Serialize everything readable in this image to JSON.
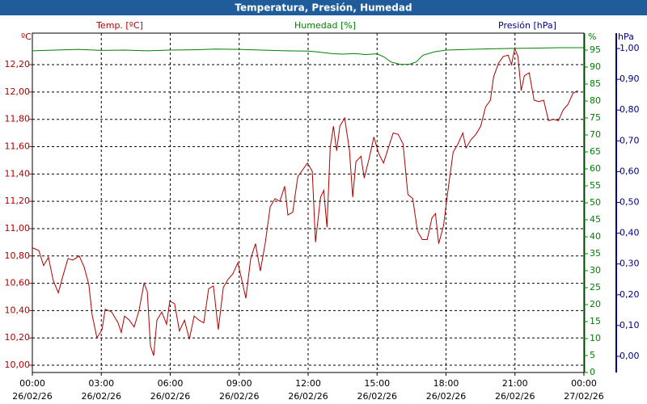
{
  "chart_data": {
    "type": "line",
    "title": "Temperatura, Presión, Humedad",
    "xlim": [
      0,
      24
    ],
    "xticks": [
      {
        "value": 0,
        "label": "00:00"
      },
      {
        "value": 3,
        "label": "03:00"
      },
      {
        "value": 6,
        "label": "06:00"
      },
      {
        "value": 9,
        "label": "09:00"
      },
      {
        "value": 12,
        "label": "12:00"
      },
      {
        "value": 15,
        "label": "15:00"
      },
      {
        "value": 18,
        "label": "18:00"
      },
      {
        "value": 21,
        "label": "21:00"
      },
      {
        "value": 24,
        "label": "00:00"
      }
    ],
    "xtick_dates": [
      "26/02/26",
      "26/02/26",
      "26/02/26",
      "26/02/26",
      "26/02/26",
      "26/02/26",
      "26/02/26",
      "26/02/26",
      "27/02/26"
    ],
    "y_unit": "ºC",
    "ylim": [
      9.947,
      12.431
    ],
    "yticks": [
      {
        "value": 10.0,
        "label": "10,00"
      },
      {
        "value": 10.2,
        "label": "10,20"
      },
      {
        "value": 10.4,
        "label": "10,40"
      },
      {
        "value": 10.6,
        "label": "10,60"
      },
      {
        "value": 10.8,
        "label": "10,80"
      },
      {
        "value": 11.0,
        "label": "11,00"
      },
      {
        "value": 11.2,
        "label": "11,20"
      },
      {
        "value": 11.4,
        "label": "11,40"
      },
      {
        "value": 11.6,
        "label": "11,60"
      },
      {
        "value": 11.8,
        "label": "11,80"
      },
      {
        "value": 12.0,
        "label": "12,00"
      },
      {
        "value": 12.2,
        "label": "12,20"
      }
    ],
    "y2_unit": "%",
    "y2lim": [
      0,
      100
    ],
    "y2ticks": [
      0,
      5,
      10,
      15,
      20,
      25,
      30,
      35,
      40,
      45,
      50,
      55,
      60,
      65,
      70,
      75,
      80,
      85,
      90,
      95
    ],
    "y3_label": "Presión [hPa]",
    "y3_unit": "hPa",
    "y3color": "#000080",
    "y3lim": [
      -0.0525,
      1.05
    ],
    "y3ticks": [
      {
        "value": 0,
        "label": "0,00"
      },
      {
        "value": 0.1,
        "label": "0,10"
      },
      {
        "value": 0.2,
        "label": "0,20"
      },
      {
        "value": 0.3,
        "label": "0,30"
      },
      {
        "value": 0.4,
        "label": "0,40"
      },
      {
        "value": 0.5,
        "label": "0,50"
      },
      {
        "value": 0.6,
        "label": "0,60"
      },
      {
        "value": 0.7,
        "label": "0,70"
      },
      {
        "value": 0.8,
        "label": "0,80"
      },
      {
        "value": 0.9,
        "label": "0,90"
      },
      {
        "value": 1.0,
        "label": "1,00"
      }
    ],
    "grid": true,
    "series": [
      {
        "name": "Temp. [ºC]",
        "color": "#b00000",
        "axis": "y",
        "x": [
          0,
          0.28,
          0.49,
          0.7,
          0.91,
          1.13,
          1.34,
          1.55,
          1.76,
          2.04,
          2.25,
          2.46,
          2.6,
          2.81,
          3.03,
          3.17,
          3.45,
          3.73,
          3.87,
          4.01,
          4.22,
          4.43,
          4.64,
          4.86,
          5.0,
          5.14,
          5.28,
          5.42,
          5.63,
          5.84,
          5.98,
          6.19,
          6.4,
          6.62,
          6.83,
          7.04,
          7.25,
          7.46,
          7.67,
          7.88,
          8.09,
          8.31,
          8.52,
          8.73,
          8.94,
          9.08,
          9.29,
          9.5,
          9.71,
          9.92,
          10.13,
          10.35,
          10.56,
          10.77,
          10.98,
          11.12,
          11.33,
          11.55,
          11.76,
          11.97,
          12.18,
          12.32,
          12.54,
          12.68,
          12.82,
          12.96,
          13.1,
          13.24,
          13.38,
          13.59,
          13.8,
          13.94,
          14.08,
          14.3,
          14.44,
          14.65,
          14.86,
          15.07,
          15.28,
          15.49,
          15.7,
          15.92,
          16.13,
          16.34,
          16.55,
          16.76,
          16.97,
          17.18,
          17.39,
          17.54,
          17.68,
          17.89,
          18.1,
          18.31,
          18.52,
          18.73,
          18.87,
          19.08,
          19.3,
          19.51,
          19.72,
          19.93,
          20.07,
          20.28,
          20.49,
          20.7,
          20.85,
          20.99,
          21.13,
          21.27,
          21.41,
          21.62,
          21.83,
          22.04,
          22.25,
          22.46,
          22.68,
          22.89,
          23.1,
          23.31,
          23.52,
          23.73
        ],
        "values": [
          10.86,
          10.84,
          10.73,
          10.79,
          10.62,
          10.53,
          10.66,
          10.78,
          10.77,
          10.8,
          10.72,
          10.59,
          10.37,
          10.2,
          10.26,
          10.41,
          10.39,
          10.31,
          10.24,
          10.36,
          10.33,
          10.28,
          10.4,
          10.6,
          10.54,
          10.14,
          10.07,
          10.33,
          10.39,
          10.3,
          10.47,
          10.45,
          10.25,
          10.33,
          10.19,
          10.36,
          10.33,
          10.31,
          10.56,
          10.58,
          10.26,
          10.57,
          10.63,
          10.67,
          10.75,
          10.65,
          10.49,
          10.78,
          10.89,
          10.69,
          10.89,
          11.16,
          11.22,
          11.2,
          11.31,
          11.1,
          11.12,
          11.38,
          11.43,
          11.48,
          11.42,
          10.9,
          11.23,
          11.28,
          11.01,
          11.59,
          11.75,
          11.57,
          11.75,
          11.81,
          11.57,
          11.23,
          11.49,
          11.53,
          11.37,
          11.51,
          11.67,
          11.55,
          11.48,
          11.59,
          11.7,
          11.69,
          11.62,
          11.25,
          11.22,
          10.98,
          10.92,
          10.92,
          11.08,
          11.11,
          10.89,
          11.02,
          11.3,
          11.56,
          11.62,
          11.7,
          11.59,
          11.65,
          11.69,
          11.75,
          11.89,
          11.94,
          12.11,
          12.21,
          12.26,
          12.27,
          12.2,
          12.32,
          12.26,
          12.01,
          12.12,
          12.14,
          11.94,
          11.93,
          11.94,
          11.79,
          11.8,
          11.79,
          11.87,
          11.91,
          11.99,
          12.01
        ]
      },
      {
        "name": "Humedad [%]",
        "color": "#008000",
        "axis": "y2",
        "x": [
          0,
          1,
          2,
          3,
          4,
          5,
          6,
          7,
          8,
          9,
          10,
          11,
          12,
          12.5,
          13,
          13.5,
          14,
          14.5,
          15,
          15.3,
          15.6,
          16,
          16.4,
          16.7,
          17,
          17.5,
          18,
          19,
          20,
          21,
          22,
          23,
          24
        ],
        "values": [
          94.8,
          95,
          95.2,
          94.9,
          95,
          94.8,
          95,
          95.1,
          95.3,
          95.2,
          95,
          94.8,
          94.7,
          94.4,
          94,
          93.8,
          94,
          93.7,
          93.9,
          93,
          91.5,
          90.8,
          90.8,
          91.5,
          93.5,
          94.5,
          95,
          95.2,
          95.4,
          95.5,
          95.6,
          95.7,
          95.7
        ]
      }
    ]
  }
}
